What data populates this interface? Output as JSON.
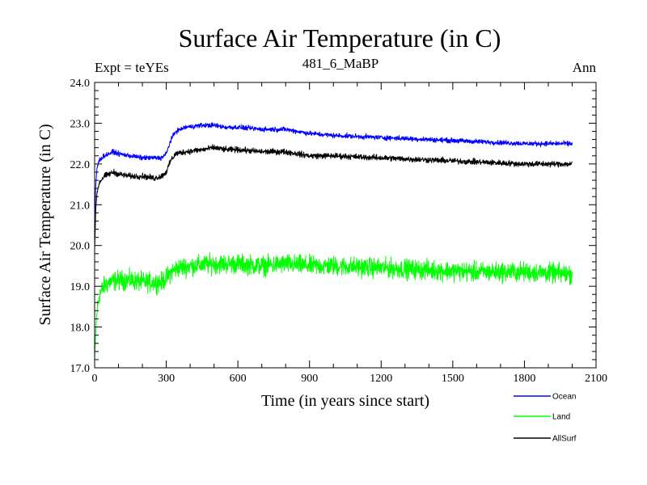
{
  "chart_data": {
    "type": "line",
    "title": "Surface Air Temperature (in C)",
    "subtitle_left": "Expt = teYEs",
    "subtitle_center": "481_6_MaBP",
    "subtitle_right": "Ann",
    "xlabel": "Time (in years since start)",
    "ylabel": "Surface Air Temperature (in C)",
    "xlim": [
      0,
      2100
    ],
    "ylim": [
      17.0,
      24.0
    ],
    "x_ticks": [
      0,
      300,
      600,
      900,
      1200,
      1500,
      1800,
      2100
    ],
    "x_tick_labels": [
      "0",
      "300",
      "600",
      "900",
      "1200",
      "1500",
      "1800",
      "2100"
    ],
    "y_ticks": [
      17.0,
      18.0,
      19.0,
      20.0,
      21.0,
      22.0,
      23.0,
      24.0
    ],
    "y_tick_labels": [
      "17.0",
      "18.0",
      "19.0",
      "20.0",
      "21.0",
      "22.0",
      "23.0",
      "24.0"
    ],
    "legend_position": "bottom-right",
    "series": [
      {
        "name": "Ocean",
        "color": "#0000ff",
        "noise": 0.05,
        "x": [
          0,
          5,
          10,
          20,
          40,
          60,
          80,
          100,
          150,
          200,
          250,
          280,
          300,
          320,
          340,
          380,
          450,
          500,
          550,
          600,
          700,
          800,
          900,
          1000,
          1200,
          1400,
          1600,
          1800,
          2000
        ],
        "values": [
          20.6,
          21.5,
          21.9,
          22.1,
          22.2,
          22.25,
          22.3,
          22.25,
          22.2,
          22.15,
          22.15,
          22.15,
          22.25,
          22.6,
          22.8,
          22.9,
          22.95,
          22.95,
          22.9,
          22.9,
          22.85,
          22.85,
          22.75,
          22.7,
          22.65,
          22.6,
          22.55,
          22.5,
          22.5
        ]
      },
      {
        "name": "Land",
        "color": "#00ff00",
        "noise": 0.2,
        "x": [
          0,
          5,
          10,
          20,
          40,
          60,
          100,
          150,
          200,
          250,
          280,
          300,
          320,
          350,
          400,
          500,
          600,
          700,
          800,
          900,
          1000,
          1200,
          1400,
          1600,
          1800,
          2000
        ],
        "values": [
          17.2,
          17.9,
          18.4,
          18.8,
          19.0,
          19.1,
          19.15,
          19.15,
          19.1,
          19.1,
          19.1,
          19.2,
          19.35,
          19.45,
          19.5,
          19.55,
          19.55,
          19.5,
          19.55,
          19.5,
          19.5,
          19.45,
          19.4,
          19.35,
          19.35,
          19.3
        ]
      },
      {
        "name": "AllSurf",
        "color": "#000000",
        "noise": 0.06,
        "x": [
          0,
          5,
          10,
          20,
          40,
          60,
          80,
          100,
          150,
          200,
          250,
          280,
          300,
          320,
          340,
          380,
          450,
          500,
          550,
          600,
          700,
          800,
          900,
          1000,
          1200,
          1400,
          1600,
          1800,
          2000
        ],
        "values": [
          19.9,
          20.9,
          21.3,
          21.55,
          21.7,
          21.75,
          21.8,
          21.75,
          21.7,
          21.7,
          21.65,
          21.7,
          21.8,
          22.1,
          22.25,
          22.3,
          22.35,
          22.4,
          22.35,
          22.35,
          22.3,
          22.3,
          22.2,
          22.2,
          22.15,
          22.1,
          22.05,
          22.0,
          22.0
        ]
      }
    ]
  }
}
